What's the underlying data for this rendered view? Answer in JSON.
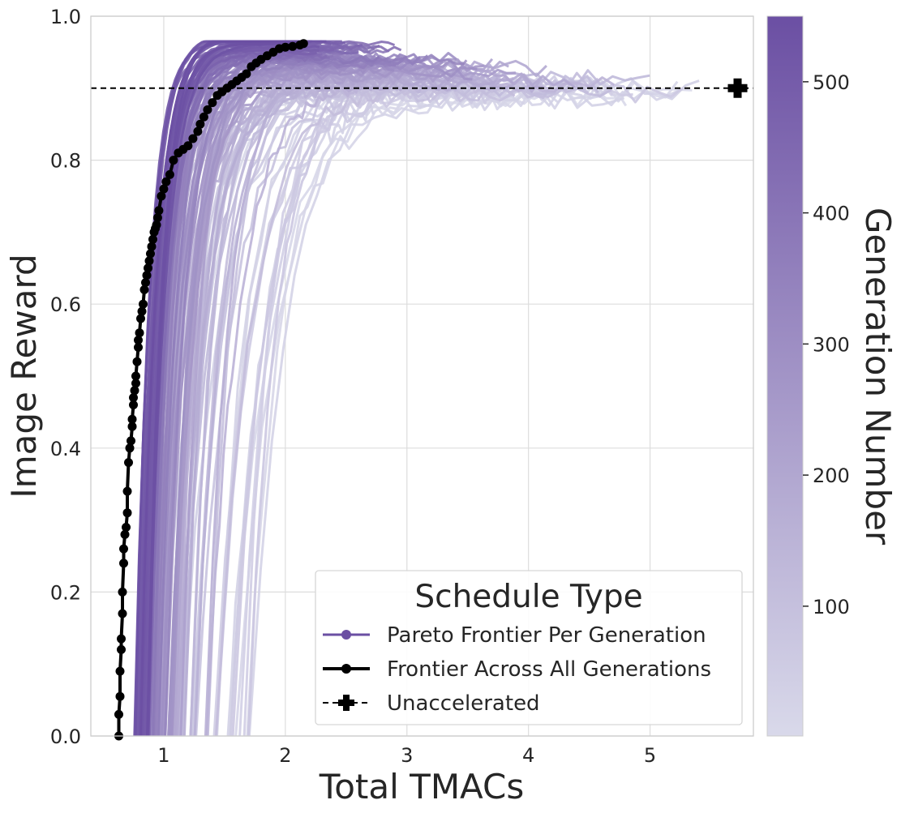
{
  "chart_data": {
    "type": "line",
    "xlabel": "Total TMACs",
    "ylabel": "Image Reward",
    "xlim": [
      0.4,
      5.85
    ],
    "ylim": [
      0.0,
      1.0
    ],
    "xticks": [
      "1",
      "2",
      "3",
      "4",
      "5"
    ],
    "yticks": [
      "0.0",
      "0.2",
      "0.4",
      "0.6",
      "0.8",
      "1.0"
    ],
    "grid": true,
    "legend": {
      "title": "Schedule Type",
      "placement": "lower-right",
      "entries": [
        {
          "label": "Pareto Frontier Per Generation",
          "color": "#6b4fa3",
          "marker": "circle",
          "style": "solid"
        },
        {
          "label": "Frontier Across All Generations",
          "color": "#000000",
          "marker": "circle",
          "style": "solid"
        },
        {
          "label": "Unaccelerated",
          "color": "#000000",
          "marker": "plus",
          "style": "dashed"
        }
      ]
    },
    "colorbar": {
      "label": "Generation Number",
      "range": [
        1,
        550
      ],
      "ticks": [
        "100",
        "200",
        "300",
        "400",
        "500"
      ],
      "color_low": "#d9d9ea",
      "color_high": "#6b4fa3"
    },
    "generation_frontiers": {
      "count": 550,
      "description": "one Pareto frontier line per generation, colored by generation number"
    },
    "unaccelerated": {
      "x": 5.72,
      "y": 0.9
    },
    "frontier_all_generations": {
      "x": [
        0.63,
        0.63,
        0.64,
        0.64,
        0.65,
        0.65,
        0.66,
        0.66,
        0.67,
        0.67,
        0.68,
        0.69,
        0.7,
        0.7,
        0.71,
        0.72,
        0.73,
        0.74,
        0.74,
        0.75,
        0.75,
        0.76,
        0.77,
        0.77,
        0.78,
        0.79,
        0.79,
        0.8,
        0.81,
        0.82,
        0.83,
        0.84,
        0.85,
        0.86,
        0.87,
        0.88,
        0.89,
        0.9,
        0.91,
        0.92,
        0.93,
        0.94,
        0.95,
        0.96,
        0.98,
        1.0,
        1.02,
        1.05,
        1.08,
        1.12,
        1.16,
        1.2,
        1.24,
        1.28,
        1.3,
        1.33,
        1.36,
        1.4,
        1.44,
        1.48,
        1.52,
        1.56,
        1.6,
        1.64,
        1.68,
        1.72,
        1.76,
        1.8,
        1.85,
        1.9,
        1.95,
        2.0,
        2.06,
        2.12,
        2.15
      ],
      "y": [
        0.0,
        0.03,
        0.055,
        0.09,
        0.12,
        0.135,
        0.17,
        0.2,
        0.24,
        0.26,
        0.28,
        0.29,
        0.31,
        0.34,
        0.38,
        0.4,
        0.41,
        0.43,
        0.44,
        0.46,
        0.47,
        0.48,
        0.49,
        0.5,
        0.52,
        0.54,
        0.55,
        0.56,
        0.58,
        0.59,
        0.6,
        0.62,
        0.63,
        0.64,
        0.65,
        0.66,
        0.67,
        0.68,
        0.69,
        0.7,
        0.705,
        0.71,
        0.72,
        0.73,
        0.75,
        0.76,
        0.77,
        0.78,
        0.8,
        0.81,
        0.815,
        0.82,
        0.83,
        0.84,
        0.85,
        0.86,
        0.87,
        0.88,
        0.89,
        0.895,
        0.9,
        0.905,
        0.91,
        0.915,
        0.92,
        0.93,
        0.935,
        0.94,
        0.945,
        0.95,
        0.955,
        0.957,
        0.958,
        0.96,
        0.962
      ]
    }
  }
}
